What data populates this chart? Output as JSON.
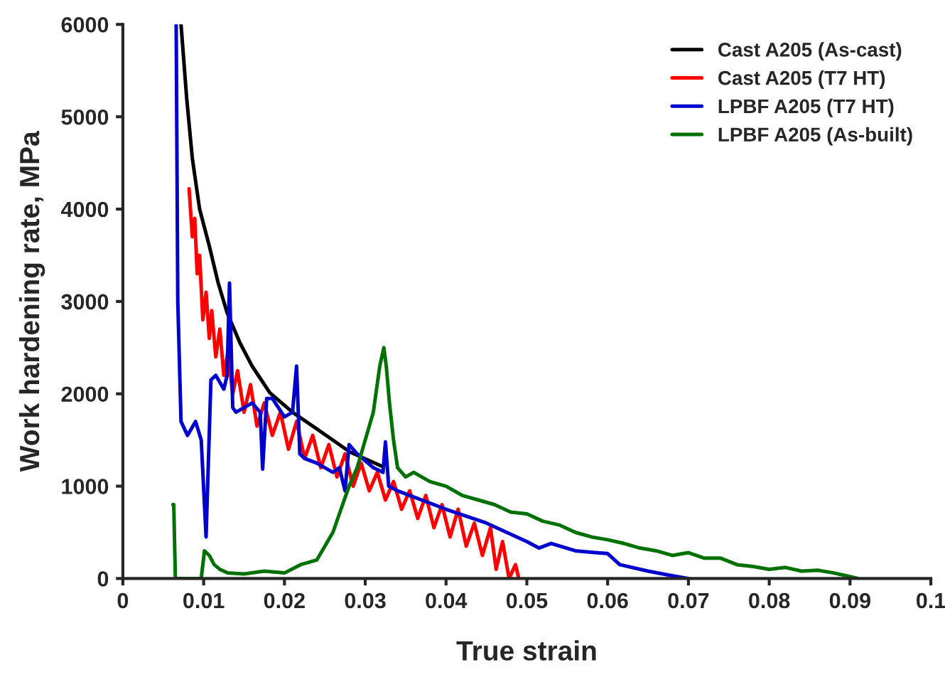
{
  "chart_data": {
    "type": "line",
    "xlabel": "True strain",
    "ylabel": "Work hardening rate, MPa",
    "xlim": [
      0,
      0.1
    ],
    "ylim": [
      0,
      6000
    ],
    "xticks": [
      0,
      0.01,
      0.02,
      0.03,
      0.04,
      0.05,
      0.06,
      0.07,
      0.08,
      0.09,
      0.1
    ],
    "yticks": [
      0,
      1000,
      2000,
      3000,
      4000,
      5000,
      6000
    ],
    "grid": false,
    "legend": "top right",
    "marker": "none",
    "line_style": "solid",
    "series": [
      {
        "name": "Cast A205 (As-cast)",
        "color": "#000000",
        "x": [
          0.0072,
          0.0079,
          0.0086,
          0.0095,
          0.0107,
          0.0118,
          0.0129,
          0.0145,
          0.016,
          0.0182,
          0.021,
          0.024,
          0.0281,
          0.0322
        ],
        "values": [
          6000,
          5200,
          4550,
          4000,
          3600,
          3200,
          2880,
          2550,
          2300,
          2010,
          1800,
          1620,
          1370,
          1210
        ]
      },
      {
        "name": "Cast A205 (T7 HT)",
        "color": "#ff0000",
        "x": [
          0.0082,
          0.0086,
          0.0089,
          0.0092,
          0.0095,
          0.0099,
          0.0103,
          0.0107,
          0.011,
          0.0115,
          0.012,
          0.0125,
          0.013,
          0.0136,
          0.0142,
          0.015,
          0.0158,
          0.0166,
          0.0175,
          0.0185,
          0.0195,
          0.0205,
          0.0215,
          0.0225,
          0.0235,
          0.0245,
          0.0255,
          0.0265,
          0.0275,
          0.0285,
          0.0295,
          0.0305,
          0.0315,
          0.0325,
          0.0335,
          0.0345,
          0.0355,
          0.0365,
          0.0375,
          0.0385,
          0.0395,
          0.0405,
          0.0415,
          0.0425,
          0.0435,
          0.0445,
          0.0455,
          0.0462,
          0.047,
          0.0478,
          0.0486,
          0.049
        ],
        "values": [
          4220,
          3700,
          3900,
          3300,
          3500,
          2800,
          3100,
          2600,
          2900,
          2400,
          2700,
          2200,
          2450,
          2000,
          2250,
          1800,
          2100,
          1650,
          1900,
          1550,
          1800,
          1400,
          1700,
          1300,
          1550,
          1200,
          1450,
          1100,
          1350,
          1000,
          1250,
          950,
          1150,
          850,
          1050,
          750,
          950,
          650,
          900,
          550,
          800,
          450,
          750,
          350,
          600,
          250,
          550,
          100,
          400,
          0,
          150,
          0
        ]
      },
      {
        "name": "LPBF A205 (T7 HT)",
        "color": "#0000cc",
        "x": [
          0.0066,
          0.0068,
          0.0072,
          0.008,
          0.009,
          0.0097,
          0.0103,
          0.0109,
          0.0115,
          0.0125,
          0.0129,
          0.0132,
          0.0136,
          0.014,
          0.016,
          0.017,
          0.0173,
          0.0178,
          0.0185,
          0.02,
          0.021,
          0.0215,
          0.0219,
          0.0225,
          0.024,
          0.026,
          0.0268,
          0.0275,
          0.028,
          0.029,
          0.031,
          0.0322,
          0.0325,
          0.0329,
          0.034,
          0.04,
          0.045,
          0.05,
          0.0515,
          0.053,
          0.056,
          0.0585,
          0.06,
          0.0615,
          0.065,
          0.068,
          0.07
        ],
        "values": [
          6000,
          3000,
          1700,
          1550,
          1700,
          1500,
          450,
          2150,
          2200,
          2050,
          2200,
          3200,
          1850,
          1800,
          1900,
          1800,
          1185,
          1950,
          1950,
          1750,
          1800,
          2300,
          1350,
          1300,
          1250,
          1150,
          1200,
          950,
          1450,
          1350,
          1200,
          1150,
          1480,
          1000,
          950,
          750,
          600,
          400,
          330,
          380,
          300,
          280,
          270,
          150,
          80,
          30,
          0
        ]
      },
      {
        "name": "LPBF A205 (As-built)",
        "color": "#007000",
        "x": [
          0.0062,
          0.0063,
          0.0065,
          0.0097,
          0.0101,
          0.0107,
          0.0113,
          0.012,
          0.013,
          0.015,
          0.0175,
          0.02,
          0.022,
          0.024,
          0.025,
          0.026,
          0.027,
          0.028,
          0.029,
          0.03,
          0.031,
          0.0318,
          0.0323,
          0.0326,
          0.033,
          0.0335,
          0.034,
          0.035,
          0.036,
          0.038,
          0.04,
          0.042,
          0.044,
          0.046,
          0.048,
          0.05,
          0.052,
          0.054,
          0.056,
          0.058,
          0.06,
          0.062,
          0.064,
          0.066,
          0.068,
          0.07,
          0.072,
          0.074,
          0.076,
          0.078,
          0.08,
          0.082,
          0.084,
          0.086,
          0.088,
          0.09,
          0.091
        ],
        "values": [
          800,
          800,
          0,
          0,
          300,
          250,
          150,
          100,
          60,
          50,
          80,
          60,
          150,
          200,
          350,
          500,
          750,
          1000,
          1200,
          1500,
          1800,
          2300,
          2500,
          2300,
          1900,
          1500,
          1200,
          1100,
          1150,
          1050,
          1000,
          900,
          850,
          800,
          720,
          700,
          620,
          580,
          500,
          450,
          420,
          380,
          330,
          300,
          250,
          280,
          220,
          220,
          150,
          130,
          100,
          120,
          80,
          90,
          60,
          20,
          0
        ]
      }
    ]
  }
}
